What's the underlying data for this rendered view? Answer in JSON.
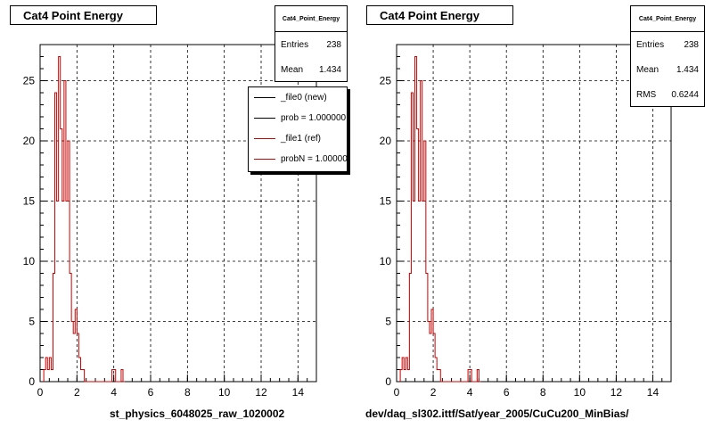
{
  "chart_data": [
    {
      "type": "histogram",
      "title": "Cat4 Point Energy",
      "xlabel": "st_physics_6048025_raw_1020002",
      "ylabel": "",
      "xlim": [
        0,
        15
      ],
      "ylim": [
        0,
        28
      ],
      "x_ticks": [
        "0",
        "2",
        "4",
        "6",
        "8",
        "10",
        "12",
        "14"
      ],
      "y_ticks": [
        "0",
        "5",
        "10",
        "15",
        "20",
        "25"
      ],
      "grid": true,
      "bin_width": 0.1,
      "x": [
        0.2,
        0.3,
        0.4,
        0.5,
        0.6,
        0.7,
        0.8,
        0.9,
        1.0,
        1.1,
        1.2,
        1.3,
        1.4,
        1.5,
        1.6,
        1.7,
        1.8,
        1.9,
        2.0,
        2.1,
        2.2,
        2.3,
        2.4,
        2.5,
        2.6,
        2.7,
        2.8,
        2.9,
        3.0,
        3.1,
        3.2,
        3.3,
        3.4,
        3.5,
        3.6,
        3.7,
        3.8,
        3.9,
        4.0,
        4.1,
        4.2,
        4.3,
        4.4,
        4.5
      ],
      "values": [
        1,
        2,
        1,
        2,
        1,
        9,
        24,
        15,
        27,
        21,
        15,
        25,
        15,
        20,
        9,
        5,
        4,
        6,
        4,
        2,
        1,
        1,
        0,
        0,
        0,
        0,
        0,
        0,
        0,
        0,
        0,
        0,
        0,
        0,
        0,
        0,
        0,
        1,
        1,
        0,
        0,
        0,
        1,
        0
      ],
      "series_colors": {
        "new": "#000000",
        "ref": "#cc0000"
      },
      "stats": {
        "name": "Cat4_Point_Energy",
        "rows": [
          {
            "label": "Entries",
            "value": "238"
          },
          {
            "label": "Mean",
            "value": "1.434"
          }
        ]
      },
      "legend": [
        {
          "label": "_file0 (new)",
          "color": "#000000"
        },
        {
          "label": "prob = 1.000000",
          "color": "#000000"
        },
        {
          "label": "_file1 (ref)",
          "color": "#cc0000"
        },
        {
          "label": "probN = 1.000000",
          "color": "#cc0000"
        }
      ]
    },
    {
      "type": "histogram",
      "title": "Cat4 Point Energy",
      "xlabel": "dev/daq_sl302.ittf/Sat/year_2005/CuCu200_MinBias/",
      "ylabel": "",
      "xlim": [
        0,
        15
      ],
      "ylim": [
        0,
        28
      ],
      "x_ticks": [
        "0",
        "2",
        "4",
        "6",
        "8",
        "10",
        "12",
        "14"
      ],
      "y_ticks": [
        "0",
        "5",
        "10",
        "15",
        "20",
        "25"
      ],
      "grid": true,
      "bin_width": 0.1,
      "x": [
        0.2,
        0.3,
        0.4,
        0.5,
        0.6,
        0.7,
        0.8,
        0.9,
        1.0,
        1.1,
        1.2,
        1.3,
        1.4,
        1.5,
        1.6,
        1.7,
        1.8,
        1.9,
        2.0,
        2.1,
        2.2,
        2.3,
        2.4,
        2.5,
        2.6,
        2.7,
        2.8,
        2.9,
        3.0,
        3.1,
        3.2,
        3.3,
        3.4,
        3.5,
        3.6,
        3.7,
        3.8,
        3.9,
        4.0,
        4.1,
        4.2,
        4.3,
        4.4,
        4.5
      ],
      "values": [
        1,
        2,
        1,
        2,
        1,
        9,
        24,
        15,
        27,
        21,
        15,
        25,
        15,
        20,
        9,
        5,
        4,
        6,
        4,
        2,
        1,
        1,
        0,
        0,
        0,
        0,
        0,
        0,
        0,
        0,
        0,
        0,
        0,
        0,
        0,
        0,
        0,
        1,
        1,
        0,
        0,
        0,
        1,
        0
      ],
      "series_colors": {
        "ref": "#cc0000"
      },
      "stats": {
        "name": "Cat4_Point_Energy",
        "rows": [
          {
            "label": "Entries",
            "value": "238"
          },
          {
            "label": "Mean",
            "value": "1.434"
          },
          {
            "label": "RMS",
            "value": "0.6244"
          }
        ]
      }
    }
  ]
}
